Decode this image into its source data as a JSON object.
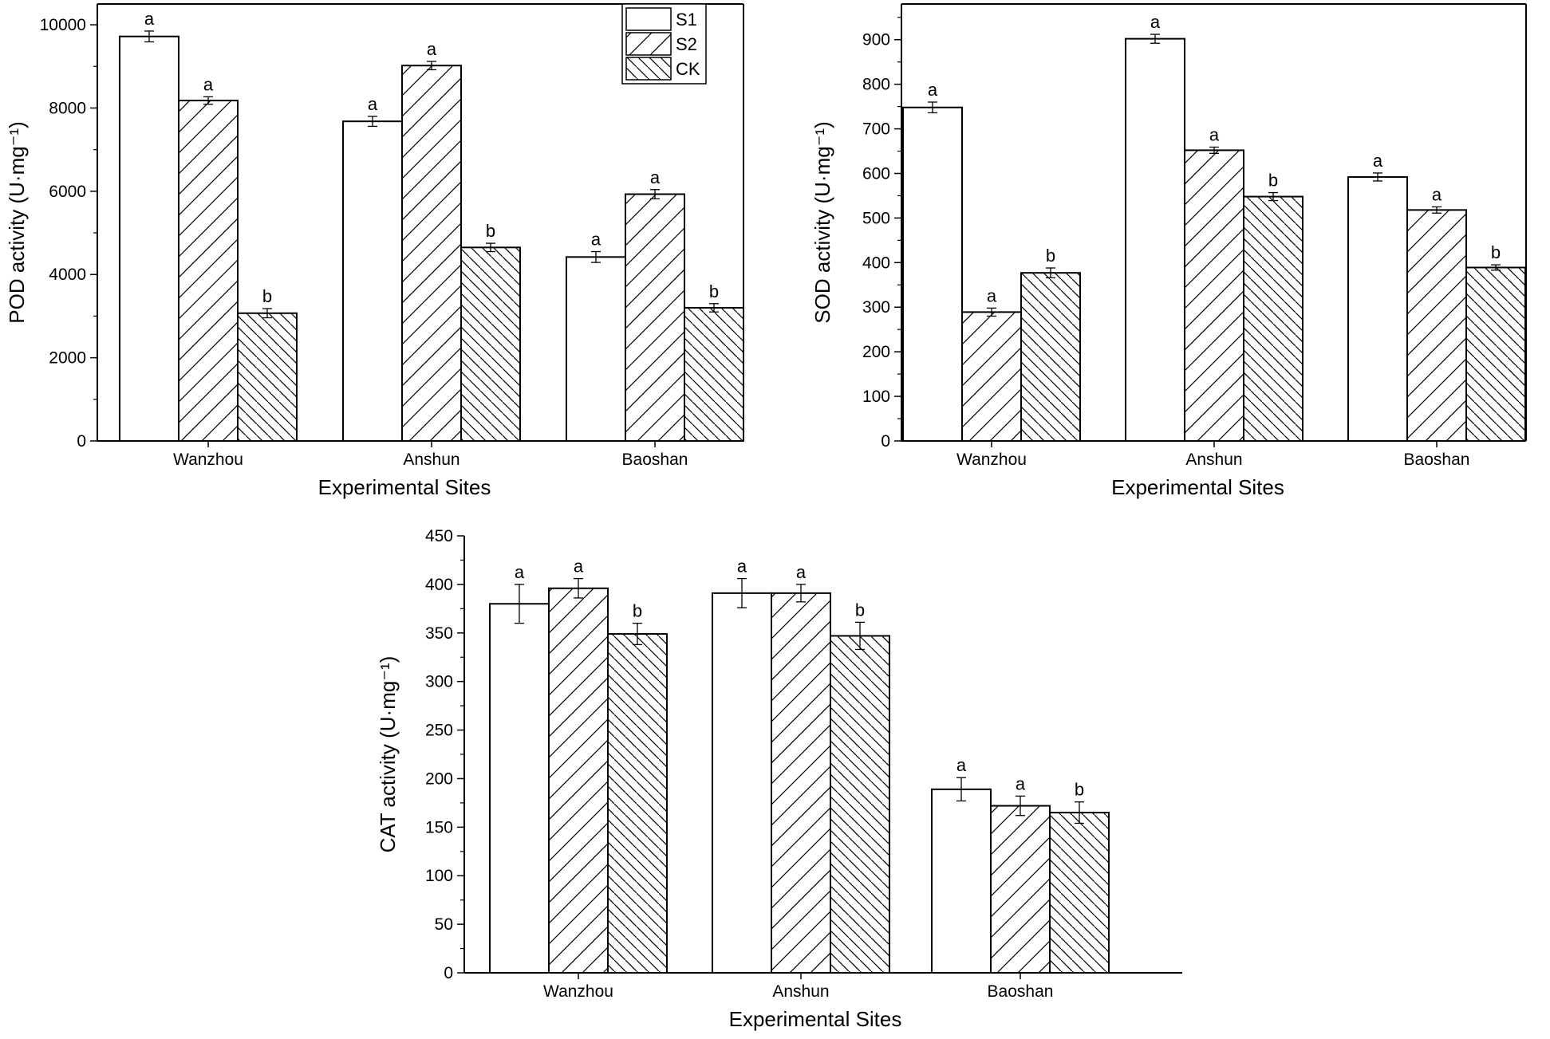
{
  "chart_data": [
    {
      "type": "bar",
      "id": "pod",
      "xlabel": "Experimental Sites",
      "ylabel": "POD activity (U·mg⁻¹)",
      "categories": [
        "Wanzhou",
        "Anshun",
        "Baoshan"
      ],
      "ylim": [
        0,
        10500
      ],
      "yticks": [
        0,
        2000,
        4000,
        6000,
        8000,
        10000
      ],
      "series": [
        {
          "name": "S1",
          "values": [
            9720,
            7680,
            4420
          ],
          "errors": [
            130,
            120,
            130
          ],
          "labels": [
            "a",
            "a",
            "a"
          ]
        },
        {
          "name": "S2",
          "values": [
            8180,
            9020,
            5930
          ],
          "errors": [
            90,
            100,
            110
          ],
          "labels": [
            "a",
            "a",
            "a"
          ]
        },
        {
          "name": "CK",
          "values": [
            3070,
            4650,
            3200
          ],
          "errors": [
            110,
            100,
            100
          ],
          "labels": [
            "b",
            "b",
            "b"
          ]
        }
      ],
      "legend": "top-right"
    },
    {
      "type": "bar",
      "id": "sod",
      "xlabel": "Experimental Sites",
      "ylabel": "SOD activity (U·mg⁻¹)",
      "categories": [
        "Wanzhou",
        "Anshun",
        "Baoshan"
      ],
      "ylim": [
        0,
        980
      ],
      "yticks": [
        0,
        100,
        200,
        300,
        400,
        500,
        600,
        700,
        800,
        900
      ],
      "series": [
        {
          "name": "S1",
          "values": [
            748,
            902,
            592
          ],
          "errors": [
            12,
            10,
            9
          ],
          "labels": [
            "a",
            "a",
            "a"
          ]
        },
        {
          "name": "S2",
          "values": [
            289,
            652,
            518
          ],
          "errors": [
            9,
            7,
            7
          ],
          "labels": [
            "a",
            "a",
            "a"
          ]
        },
        {
          "name": "CK",
          "values": [
            377,
            548,
            389
          ],
          "errors": [
            11,
            9,
            6
          ],
          "labels": [
            "b",
            "b",
            "b"
          ]
        }
      ]
    },
    {
      "type": "bar",
      "id": "cat",
      "xlabel": "Experimental Sites",
      "ylabel": "CAT activity (U·mg⁻¹)",
      "categories": [
        "Wanzhou",
        "Anshun",
        "Baoshan"
      ],
      "ylim": [
        0,
        450
      ],
      "yticks": [
        0,
        50,
        100,
        150,
        200,
        250,
        300,
        350,
        400,
        450
      ],
      "series": [
        {
          "name": "S1",
          "values": [
            380,
            391,
            189
          ],
          "errors": [
            20,
            15,
            12
          ],
          "labels": [
            "a",
            "a",
            "a"
          ]
        },
        {
          "name": "S2",
          "values": [
            396,
            391,
            172
          ],
          "errors": [
            10,
            9,
            10
          ],
          "labels": [
            "a",
            "a",
            "a"
          ]
        },
        {
          "name": "CK",
          "values": [
            349,
            347,
            165
          ],
          "errors": [
            11,
            14,
            11
          ],
          "labels": [
            "b",
            "b",
            "b"
          ]
        }
      ]
    }
  ]
}
